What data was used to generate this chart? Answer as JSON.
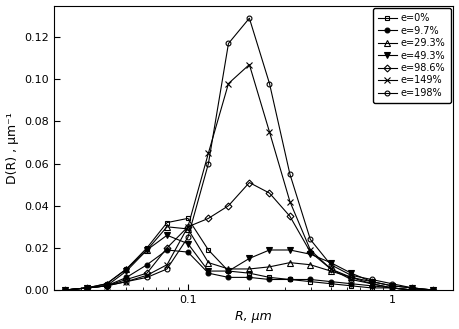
{
  "xlabel": "R, μm",
  "ylabel": "D(R) , μm⁻¹",
  "xlim": [
    0.022,
    2.0
  ],
  "ylim": [
    0.0,
    0.135
  ],
  "series": [
    {
      "label": "e=0%",
      "marker": "s",
      "fillstyle": "none",
      "color": "black",
      "markersize": 3.5,
      "x": [
        0.025,
        0.032,
        0.04,
        0.05,
        0.063,
        0.079,
        0.1,
        0.126,
        0.158,
        0.2,
        0.251,
        0.316,
        0.398,
        0.501,
        0.631,
        0.794,
        1.0,
        1.259,
        1.585
      ],
      "y": [
        0.0,
        0.001,
        0.003,
        0.01,
        0.02,
        0.032,
        0.034,
        0.019,
        0.009,
        0.008,
        0.006,
        0.005,
        0.004,
        0.003,
        0.002,
        0.001,
        0.001,
        0.0,
        0.0
      ]
    },
    {
      "label": "e=9.7%",
      "marker": "o",
      "fillstyle": "full",
      "color": "black",
      "markersize": 3.5,
      "x": [
        0.025,
        0.032,
        0.04,
        0.05,
        0.063,
        0.079,
        0.1,
        0.126,
        0.158,
        0.2,
        0.251,
        0.316,
        0.398,
        0.501,
        0.631,
        0.794,
        1.0,
        1.259,
        1.585
      ],
      "y": [
        0.0,
        0.001,
        0.002,
        0.006,
        0.012,
        0.019,
        0.018,
        0.008,
        0.006,
        0.006,
        0.005,
        0.005,
        0.005,
        0.004,
        0.003,
        0.002,
        0.001,
        0.0,
        0.0
      ]
    },
    {
      "label": "e=29.3%",
      "marker": "^",
      "fillstyle": "none",
      "color": "black",
      "markersize": 4,
      "x": [
        0.025,
        0.032,
        0.04,
        0.05,
        0.063,
        0.079,
        0.1,
        0.126,
        0.158,
        0.2,
        0.251,
        0.316,
        0.398,
        0.501,
        0.631,
        0.794,
        1.0,
        1.259,
        1.585
      ],
      "y": [
        0.0,
        0.001,
        0.003,
        0.01,
        0.019,
        0.03,
        0.029,
        0.013,
        0.01,
        0.01,
        0.011,
        0.013,
        0.012,
        0.009,
        0.006,
        0.003,
        0.001,
        0.0,
        0.0
      ]
    },
    {
      "label": "e=49.3%",
      "marker": "v",
      "fillstyle": "full",
      "color": "black",
      "markersize": 4,
      "x": [
        0.025,
        0.032,
        0.04,
        0.05,
        0.063,
        0.079,
        0.1,
        0.126,
        0.158,
        0.2,
        0.251,
        0.316,
        0.398,
        0.501,
        0.631,
        0.794,
        1.0,
        1.259,
        1.585
      ],
      "y": [
        0.0,
        0.001,
        0.002,
        0.009,
        0.019,
        0.026,
        0.022,
        0.009,
        0.009,
        0.015,
        0.019,
        0.019,
        0.017,
        0.013,
        0.008,
        0.004,
        0.002,
        0.001,
        0.0
      ]
    },
    {
      "label": "e=98.6%",
      "marker": "D",
      "fillstyle": "none",
      "color": "black",
      "markersize": 3.5,
      "x": [
        0.025,
        0.032,
        0.04,
        0.05,
        0.063,
        0.079,
        0.1,
        0.126,
        0.158,
        0.2,
        0.251,
        0.316,
        0.398,
        0.501,
        0.631,
        0.794,
        1.0,
        1.259,
        1.585
      ],
      "y": [
        0.0,
        0.001,
        0.002,
        0.005,
        0.008,
        0.02,
        0.03,
        0.034,
        0.04,
        0.051,
        0.046,
        0.035,
        0.018,
        0.01,
        0.006,
        0.004,
        0.002,
        0.001,
        0.0
      ]
    },
    {
      "label": "e=149%",
      "marker": "x",
      "fillstyle": "full",
      "color": "black",
      "markersize": 4,
      "x": [
        0.025,
        0.032,
        0.04,
        0.05,
        0.063,
        0.079,
        0.1,
        0.126,
        0.158,
        0.2,
        0.251,
        0.316,
        0.398,
        0.501,
        0.631,
        0.794,
        1.0,
        1.259,
        1.585
      ],
      "y": [
        0.0,
        0.001,
        0.002,
        0.004,
        0.007,
        0.012,
        0.03,
        0.065,
        0.098,
        0.107,
        0.075,
        0.042,
        0.019,
        0.01,
        0.005,
        0.003,
        0.001,
        0.0,
        0.0
      ]
    },
    {
      "label": "e=198%",
      "marker": "o",
      "fillstyle": "none",
      "color": "black",
      "markersize": 3.5,
      "x": [
        0.025,
        0.032,
        0.04,
        0.05,
        0.063,
        0.079,
        0.1,
        0.126,
        0.158,
        0.2,
        0.251,
        0.316,
        0.398,
        0.501,
        0.631,
        0.794,
        1.0,
        1.259,
        1.585
      ],
      "y": [
        0.0,
        0.001,
        0.002,
        0.004,
        0.006,
        0.01,
        0.025,
        0.06,
        0.117,
        0.129,
        0.098,
        0.055,
        0.024,
        0.012,
        0.007,
        0.005,
        0.003,
        0.001,
        0.0
      ]
    }
  ],
  "yticks": [
    0.0,
    0.02,
    0.04,
    0.06,
    0.08,
    0.1,
    0.12
  ],
  "legend_fontsize": 7.0,
  "axis_fontsize": 9,
  "tick_fontsize": 8
}
